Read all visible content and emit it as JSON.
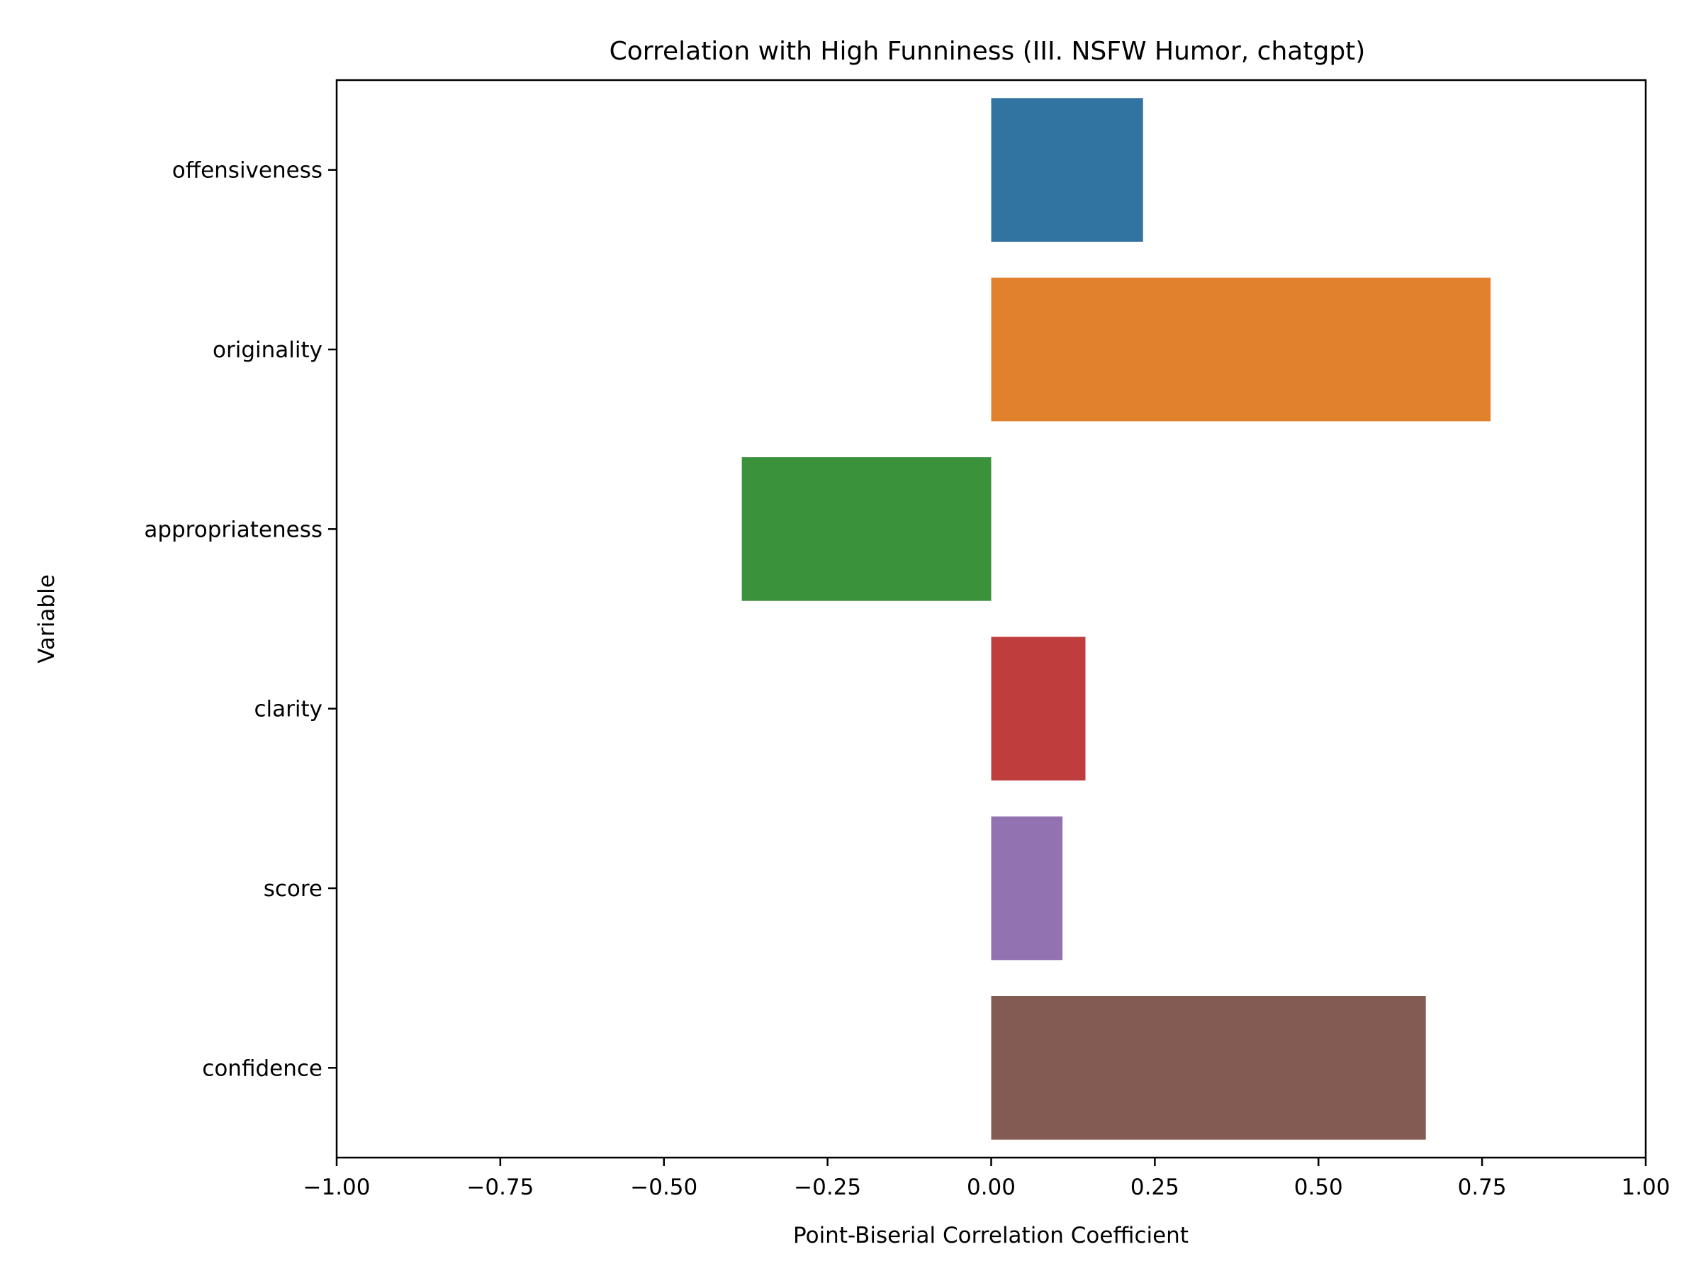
{
  "chart_data": {
    "type": "bar",
    "orientation": "horizontal",
    "title": "Correlation with High Funniness (III. NSFW Humor, chatgpt)",
    "xlabel": "Point-Biserial Correlation Coefficient",
    "ylabel": "Variable",
    "xlim": [
      -1.0,
      1.0
    ],
    "xticks": [
      "−1.00",
      "−0.75",
      "−0.50",
      "−0.25",
      "0.00",
      "0.25",
      "0.50",
      "0.75",
      "1.00"
    ],
    "xtick_values": [
      -1.0,
      -0.75,
      -0.5,
      -0.25,
      0.0,
      0.25,
      0.5,
      0.75,
      1.0
    ],
    "categories": [
      "offensiveness",
      "originality",
      "appropriateness",
      "clarity",
      "score",
      "confidence"
    ],
    "values": [
      0.232,
      0.763,
      -0.381,
      0.144,
      0.109,
      0.664
    ],
    "colors": [
      "#3274a1",
      "#e1812c",
      "#3a923a",
      "#c03d3e",
      "#9372b2",
      "#845b53"
    ],
    "grid": false,
    "legend": "none"
  }
}
